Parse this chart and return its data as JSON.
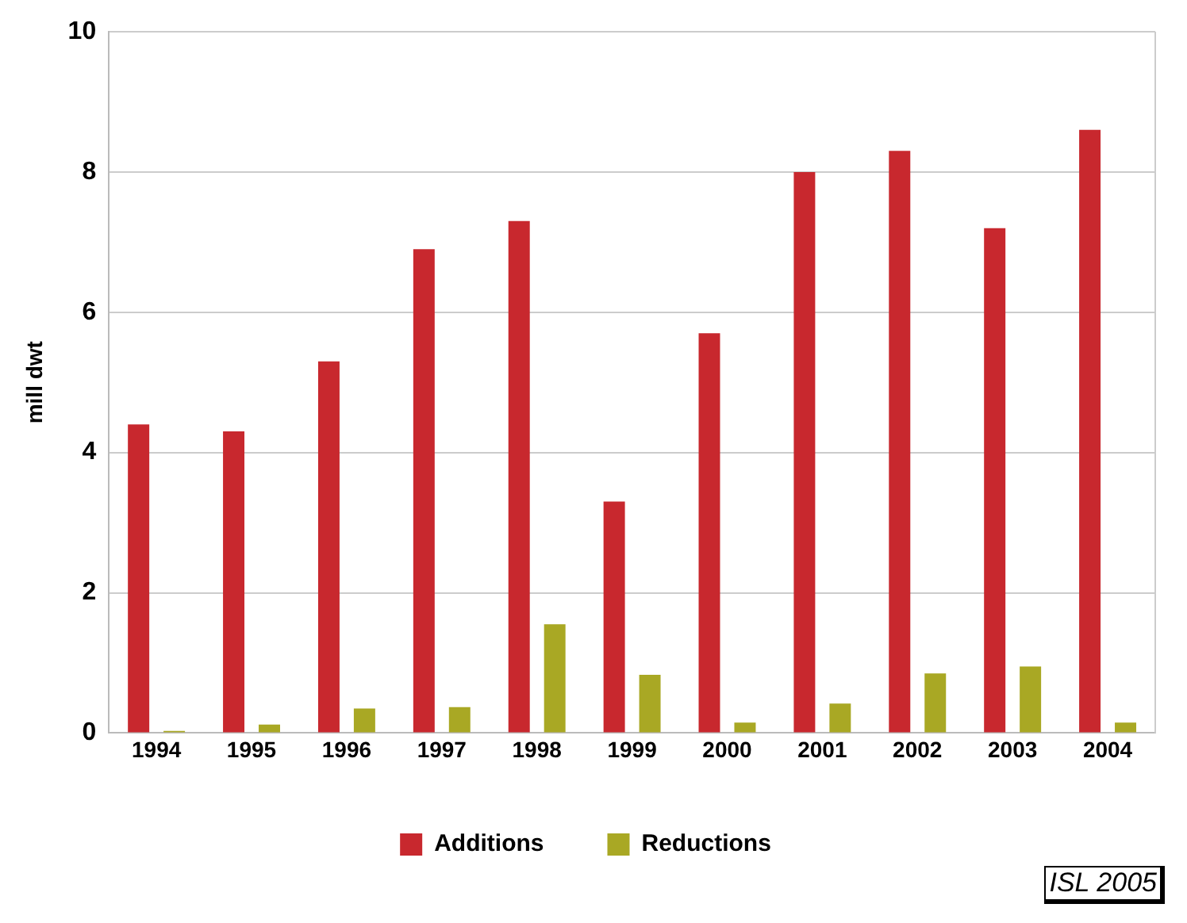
{
  "chart_data": {
    "type": "bar",
    "ylabel": "mill dwt",
    "categories": [
      "1994",
      "1995",
      "1996",
      "1997",
      "1998",
      "1999",
      "2000",
      "2001",
      "2002",
      "2003",
      "2004"
    ],
    "series": [
      {
        "name": "Additions",
        "color": "#c8282e",
        "values": [
          4.4,
          4.3,
          5.3,
          6.9,
          7.3,
          3.3,
          5.7,
          8.0,
          8.3,
          7.2,
          8.6
        ]
      },
      {
        "name": "Reductions",
        "color": "#a9a824",
        "values": [
          0.03,
          0.12,
          0.35,
          0.37,
          1.55,
          0.83,
          0.15,
          0.42,
          0.85,
          0.95,
          0.15
        ]
      }
    ],
    "ylim": [
      0,
      10
    ],
    "yticks": [
      0,
      2,
      4,
      6,
      8,
      10
    ],
    "grid": "y",
    "legend": "bottom",
    "annotations": [
      "ISL 2005"
    ]
  }
}
